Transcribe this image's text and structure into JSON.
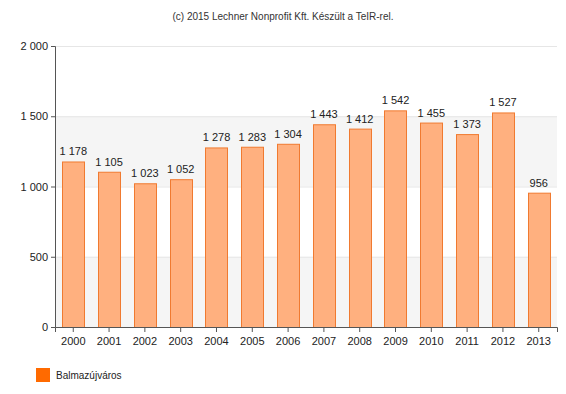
{
  "chart_data": {
    "type": "bar",
    "title": "(c) 2015 Lechner Nonprofit Kft. Készült a TeIR-rel.",
    "categories": [
      "2000",
      "2001",
      "2002",
      "2003",
      "2004",
      "2005",
      "2006",
      "2007",
      "2008",
      "2009",
      "2010",
      "2011",
      "2012",
      "2013"
    ],
    "series": [
      {
        "name": "Balmazújváros",
        "color": "#ffb07f",
        "values": [
          1178,
          1105,
          1023,
          1052,
          1278,
          1283,
          1304,
          1443,
          1412,
          1542,
          1455,
          1373,
          1527,
          956
        ],
        "value_labels": [
          "1 178",
          "1 105",
          "1 023",
          "1 052",
          "1 278",
          "1 283",
          "1 304",
          "1 443",
          "1 412",
          "1 542",
          "1 455",
          "1 373",
          "1 527",
          "956"
        ]
      }
    ],
    "ylim": [
      0,
      2000
    ],
    "yticks": [
      0,
      500,
      {
        "value": 1000,
        "label": "1 000"
      },
      {
        "value": 1500,
        "label": "1 500"
      },
      {
        "value": 2000,
        "label": "2 000"
      }
    ],
    "grid": true,
    "data_labels": true,
    "legend": "bottom-left"
  }
}
